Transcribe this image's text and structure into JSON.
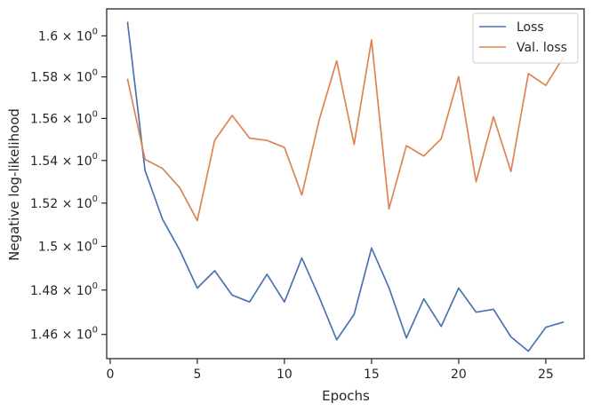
{
  "chart_data": {
    "type": "line",
    "xlabel": "Epochs",
    "ylabel": "Negative log-likelihood",
    "y_scale": "log",
    "xlim": [
      -0.2,
      27.2
    ],
    "ylim": [
      1.4492,
      1.6133
    ],
    "grid": false,
    "legend_position": "top-right",
    "x_ticks": [
      0,
      5,
      10,
      15,
      20,
      25
    ],
    "x_tick_labels": [
      "0",
      "5",
      "10",
      "15",
      "20",
      "25"
    ],
    "y_ticks": [
      1.46,
      1.48,
      1.5,
      1.52,
      1.54,
      1.56,
      1.58,
      1.6
    ],
    "y_tick_labels": [
      {
        "mantissa": "1.46",
        "times": "×",
        "base": "10",
        "exp": "0"
      },
      {
        "mantissa": "1.48",
        "times": "×",
        "base": "10",
        "exp": "0"
      },
      {
        "mantissa": "1.5",
        "times": "×",
        "base": "10",
        "exp": "0"
      },
      {
        "mantissa": "1.52",
        "times": "×",
        "base": "10",
        "exp": "0"
      },
      {
        "mantissa": "1.54",
        "times": "×",
        "base": "10",
        "exp": "0"
      },
      {
        "mantissa": "1.56",
        "times": "×",
        "base": "10",
        "exp": "0"
      },
      {
        "mantissa": "1.58",
        "times": "×",
        "base": "10",
        "exp": "0"
      },
      {
        "mantissa": "1.6",
        "times": "×",
        "base": "10",
        "exp": "0"
      }
    ],
    "x": [
      1,
      2,
      3,
      4,
      5,
      6,
      7,
      8,
      9,
      10,
      11,
      12,
      13,
      14,
      15,
      16,
      17,
      18,
      19,
      20,
      21,
      22,
      23,
      24,
      25,
      26
    ],
    "series": [
      {
        "name": "Loss",
        "color": "#4c72b0",
        "values": [
          1.6066,
          1.5353,
          1.5126,
          1.4981,
          1.4809,
          1.4888,
          1.4777,
          1.4746,
          1.4872,
          1.4746,
          1.4946,
          1.4767,
          1.4576,
          1.469,
          1.4992,
          1.4811,
          1.4584,
          1.476,
          1.4636,
          1.4809,
          1.47,
          1.4713,
          1.4589,
          1.4525,
          1.4632,
          1.4655
        ]
      },
      {
        "name": "Val. loss",
        "color": "#dd8452",
        "values": [
          1.5788,
          1.5405,
          1.5363,
          1.5271,
          1.5119,
          1.5496,
          1.5614,
          1.5506,
          1.5495,
          1.5462,
          1.5238,
          1.5594,
          1.5878,
          1.5476,
          1.598,
          1.5173,
          1.547,
          1.5421,
          1.5503,
          1.5801,
          1.53,
          1.5608,
          1.5348,
          1.5816,
          1.5759,
          1.5894
        ]
      }
    ]
  }
}
